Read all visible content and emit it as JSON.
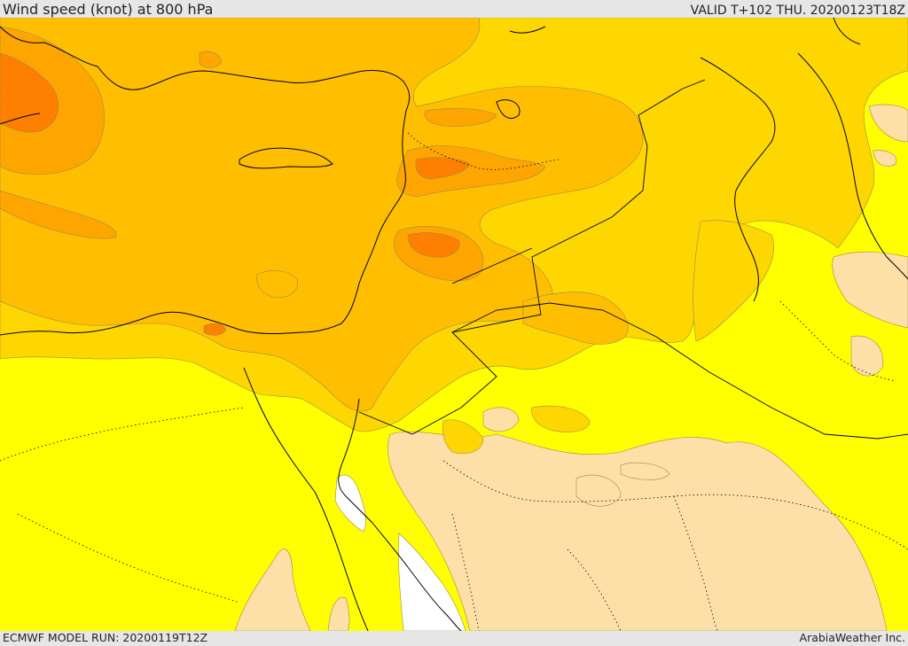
{
  "header": {
    "title": "Wind speed (knot) at 800 hPa",
    "valid_time": "VALID T+102 THU. 20200123T18Z"
  },
  "footer": {
    "model_run": "ECMWF MODEL RUN: 20200119T12Z",
    "brand": "ArabiaWeather Inc."
  },
  "map": {
    "colors": {
      "calm": "#ffffff",
      "light": "#fde0a8",
      "yellow": "#ffff00",
      "gold": "#ffd700",
      "amber": "#ffbf00",
      "orange": "#ffa500",
      "deep_orange": "#ff7f00",
      "coastline": "#000000",
      "border": "#000000"
    }
  }
}
